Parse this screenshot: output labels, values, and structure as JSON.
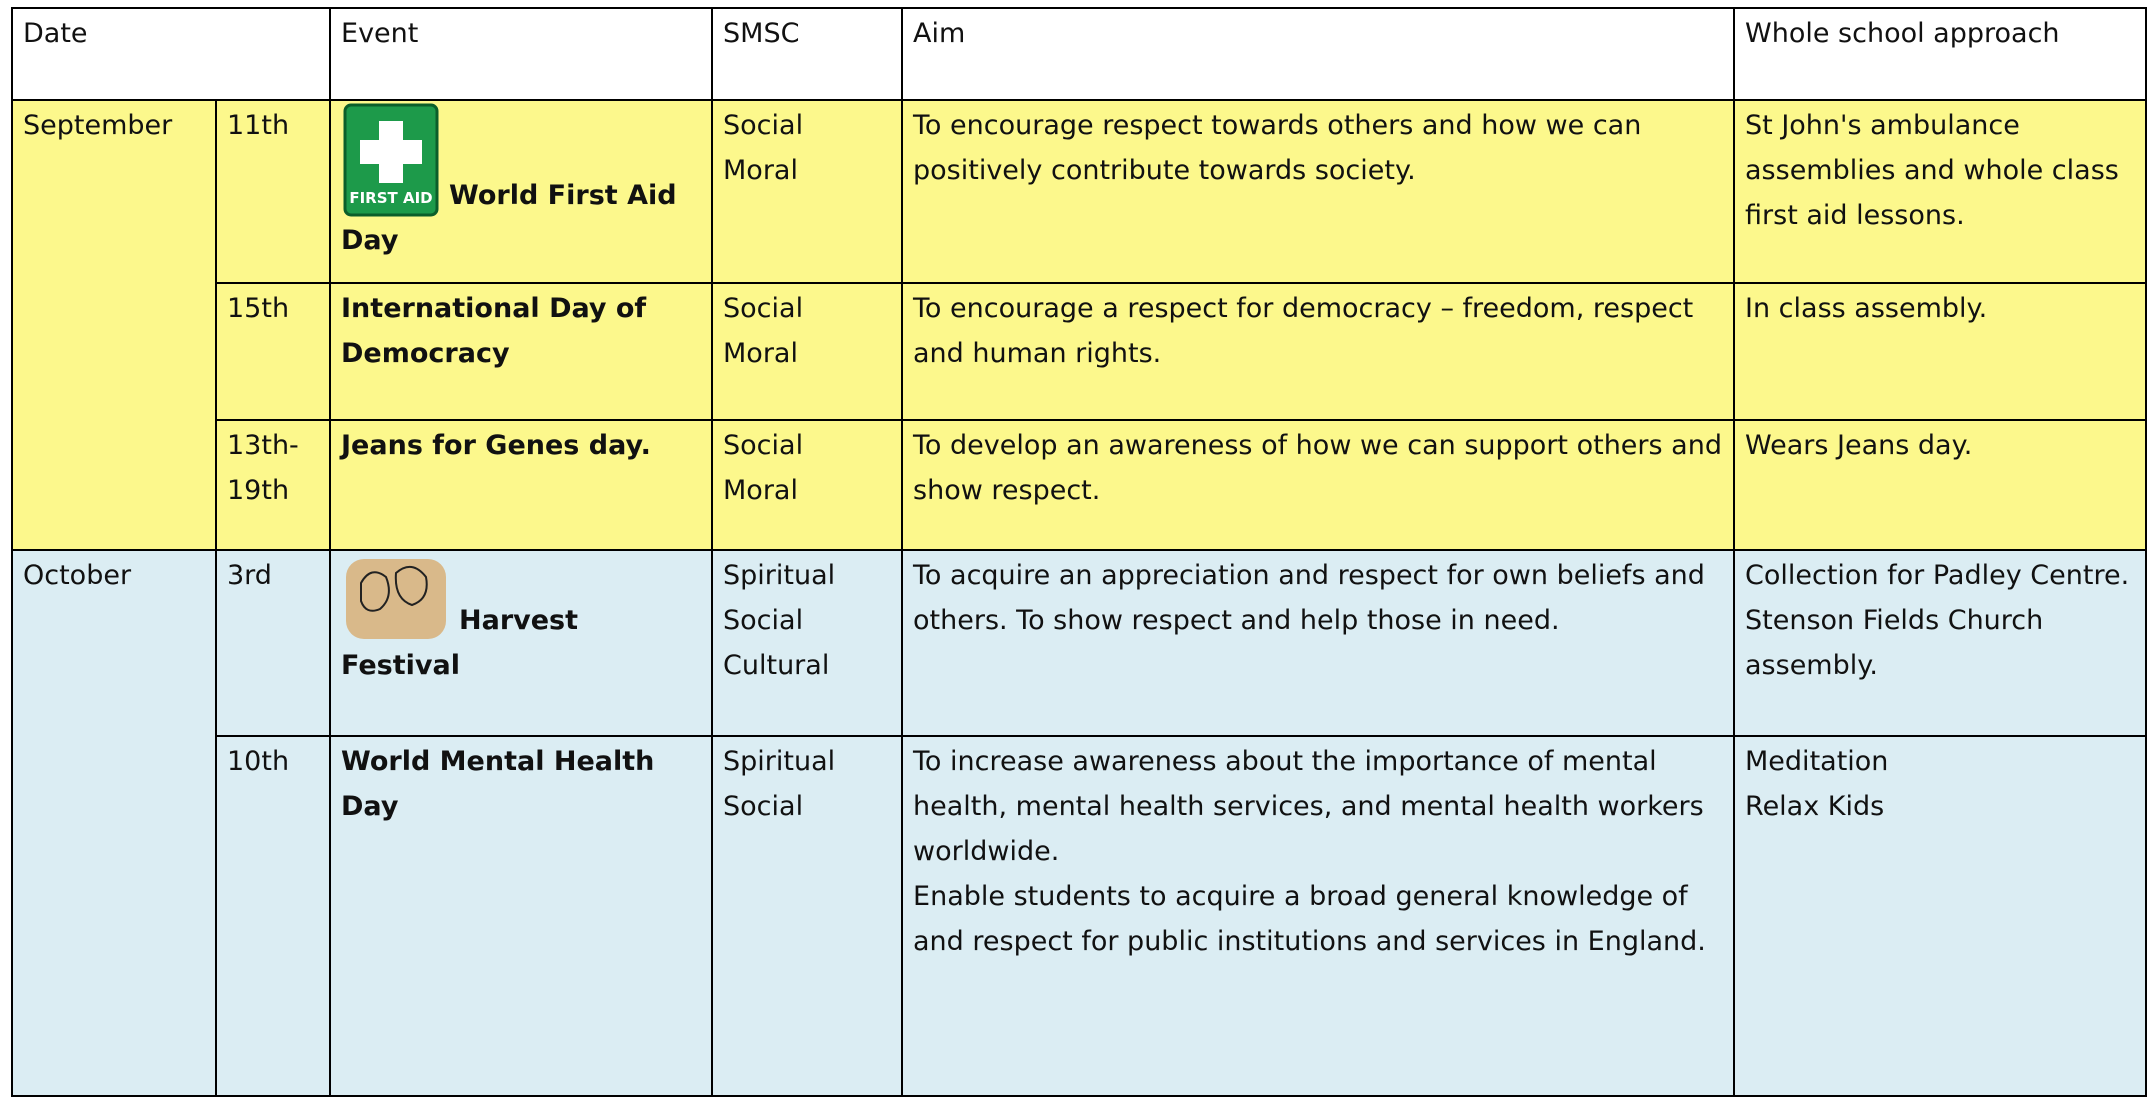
{
  "table": {
    "header": [
      "Date",
      "Event",
      "SMSC",
      "Aim",
      "Whole school approach"
    ],
    "months": [
      {
        "month": "September",
        "rows": [
          {
            "date": "11th",
            "icon": "FIRST AID",
            "event": "World First Aid Day",
            "smsc": [
              "Social",
              "Moral"
            ],
            "aim": [
              "To encourage respect towards others and how we can positively contribute towards society."
            ],
            "approach": [
              "St John's ambulance assemblies and whole class first aid lessons."
            ]
          },
          {
            "date": "15th",
            "event": "International Day of Democracy",
            "smsc": [
              "Social",
              "Moral"
            ],
            "aim": [
              "To encourage a respect for democracy – freedom, respect and human rights."
            ],
            "approach": [
              "In class assembly."
            ]
          },
          {
            "date": "13th-19th",
            "event": "Jeans for Genes day.",
            "smsc": [
              "Social",
              "Moral"
            ],
            "aim": [
              "To develop an awareness of how we can support others and show respect."
            ],
            "approach": [
              "Wears Jeans day."
            ]
          }
        ]
      },
      {
        "month": "October",
        "rows": [
          {
            "date": "3rd",
            "event": "Harvest Festival",
            "smsc": [
              "Spiritual",
              "Social",
              "Cultural"
            ],
            "aim": [
              "To acquire an appreciation and respect for own beliefs and others. To show respect and help those in need."
            ],
            "approach": [
              "Collection for Padley Centre.",
              "Stenson Fields Church assembly."
            ]
          },
          {
            "date": "10th",
            "event": "World Mental Health Day",
            "smsc": [
              "Spiritual",
              "Social"
            ],
            "aim": [
              "To increase awareness about the importance of mental health, mental health services, and mental health workers worldwide.",
              "Enable students to acquire a broad general knowledge of and respect for public institutions and services in England."
            ],
            "approach": [
              "Meditation",
              "Relax Kids"
            ]
          }
        ]
      }
    ]
  }
}
